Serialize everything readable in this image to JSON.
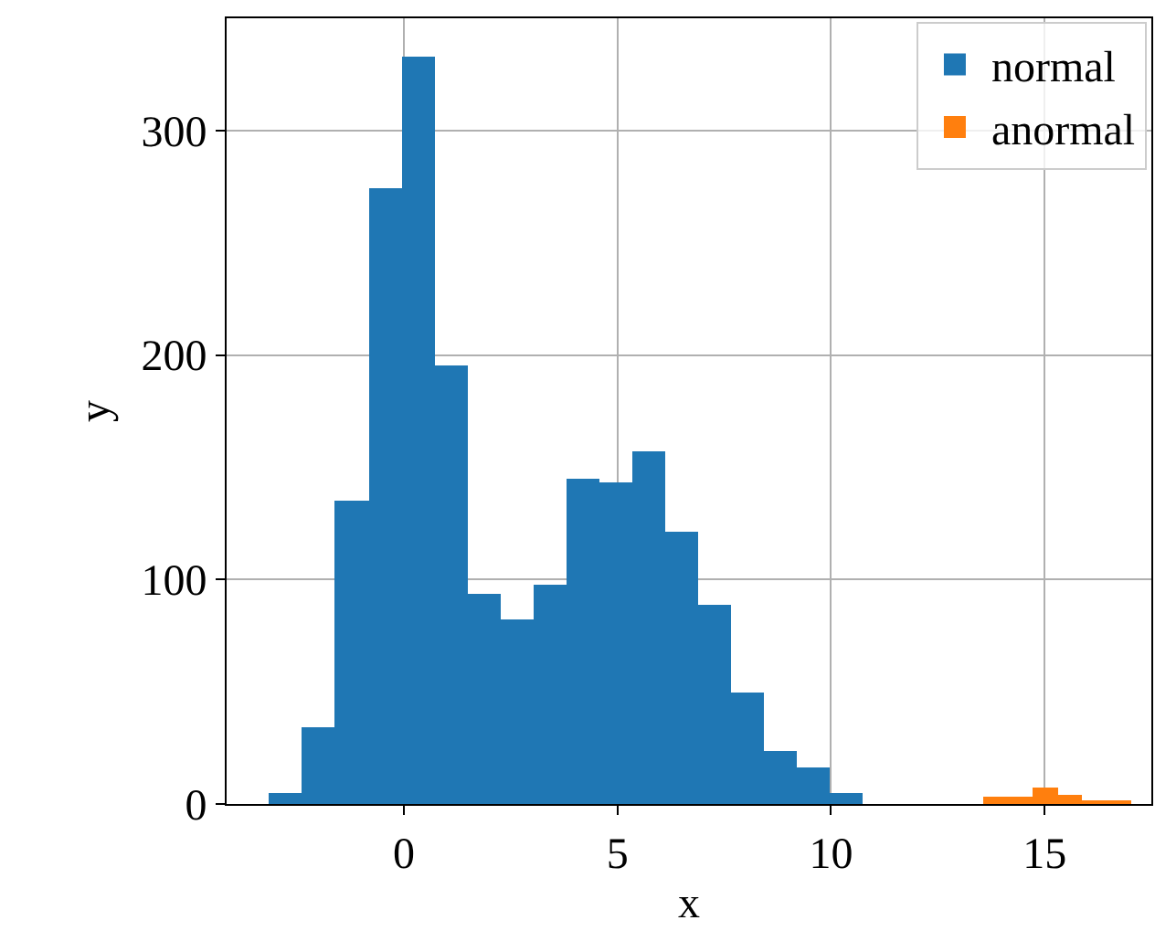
{
  "chart_data": {
    "type": "histogram",
    "xlabel": "x",
    "ylabel": "y",
    "bins": [
      -3.15,
      -2.378,
      -1.606,
      -0.834,
      -0.062,
      0.71,
      1.482,
      2.254,
      3.026,
      3.798,
      4.57,
      5.342,
      6.114,
      6.886,
      7.658,
      8.43,
      9.202,
      9.974,
      10.75,
      13.57,
      14.147,
      14.723,
      15.3,
      15.877,
      16.453,
      17.03
    ],
    "series": [
      {
        "name": "normal",
        "color": "#1f77b4",
        "values": [
          5,
          34,
          135,
          274,
          333,
          195,
          94,
          82,
          98,
          145,
          143,
          157,
          121,
          89,
          50,
          24,
          16,
          5,
          null,
          null,
          null,
          null,
          null,
          null,
          null
        ]
      },
      {
        "name": "anormal",
        "color": "#ff7f0e",
        "values": [
          null,
          null,
          null,
          null,
          null,
          null,
          null,
          null,
          null,
          null,
          null,
          null,
          null,
          null,
          null,
          null,
          null,
          null,
          null,
          3,
          3,
          7,
          4,
          1,
          2
        ]
      }
    ],
    "xlim": [
      -4.15,
      17.5
    ],
    "xticks": [
      0,
      5,
      10,
      15
    ],
    "ylim": [
      0,
      350
    ],
    "yticks": [
      0,
      100,
      200,
      300
    ],
    "grid": true,
    "legend": "top right"
  }
}
